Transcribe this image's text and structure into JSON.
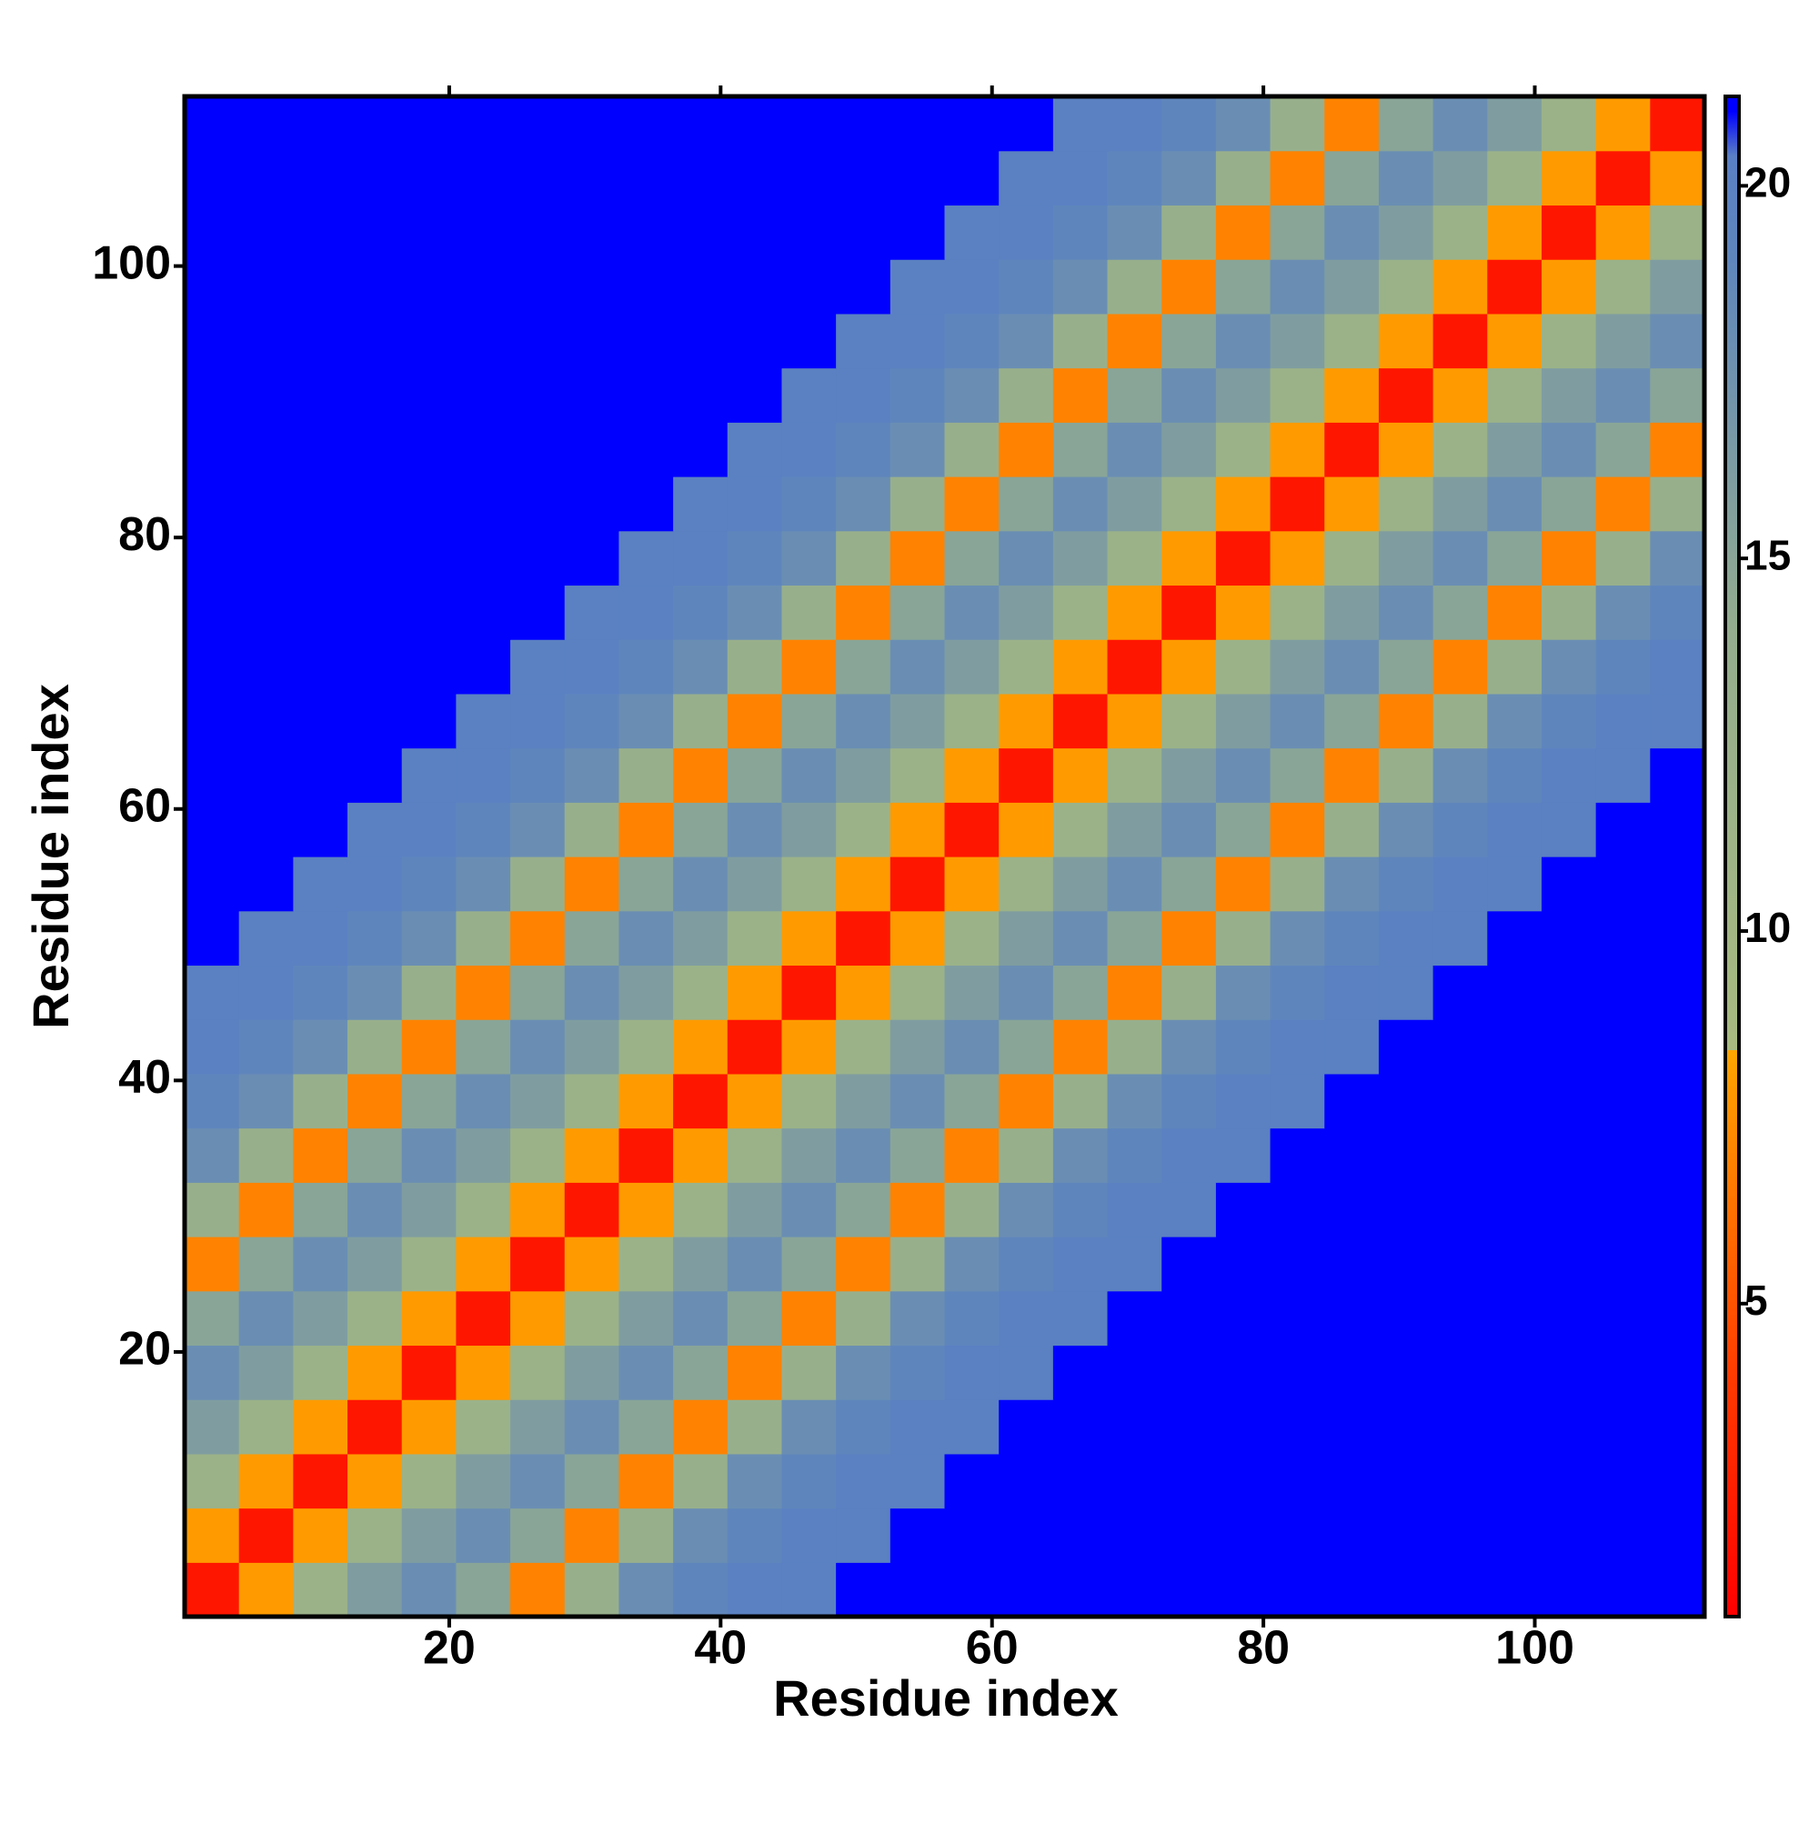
{
  "chart_data": {
    "type": "heatmap",
    "xlabel": "Residue index",
    "ylabel": "Residue index",
    "x": [
      2.5,
      6.5,
      10.5,
      14.5,
      18.5,
      22.5,
      26.5,
      30.5,
      34.5,
      38.5,
      42.5,
      46.5,
      50.5,
      54.5,
      58.5,
      62.5,
      66.5,
      70.5,
      74.5,
      78.5,
      82.5,
      86.5,
      90.5,
      94.5,
      98.5,
      102.5,
      106.5,
      110.5
    ],
    "y": [
      2.5,
      6.5,
      10.5,
      14.5,
      18.5,
      22.5,
      26.5,
      30.5,
      34.5,
      38.5,
      42.5,
      46.5,
      50.5,
      54.5,
      58.5,
      62.5,
      66.5,
      70.5,
      74.5,
      78.5,
      82.5,
      86.5,
      90.5,
      94.5,
      98.5,
      102.5,
      106.5,
      110.5
    ],
    "cell_size": 4,
    "xlim": [
      0.5,
      112.5
    ],
    "ylim": [
      0.5,
      112.5
    ],
    "xticks": [
      20,
      40,
      60,
      80,
      100
    ],
    "yticks": [
      20,
      40,
      60,
      80,
      100
    ],
    "values": [
      [
        2,
        8,
        12,
        16,
        18,
        15,
        7,
        13,
        18,
        19,
        20,
        20,
        21,
        21,
        21,
        21,
        21,
        21,
        21,
        21,
        21,
        21,
        21,
        21,
        21,
        21,
        21,
        21
      ],
      [
        8,
        2,
        8,
        12,
        16,
        18,
        15,
        7,
        13,
        18,
        19,
        20,
        20,
        21,
        21,
        21,
        21,
        21,
        21,
        21,
        21,
        21,
        21,
        21,
        21,
        21,
        21,
        21
      ],
      [
        12,
        8,
        2,
        8,
        12,
        16,
        18,
        15,
        7,
        13,
        18,
        19,
        20,
        20,
        21,
        21,
        21,
        21,
        21,
        21,
        21,
        21,
        21,
        21,
        21,
        21,
        21,
        21
      ],
      [
        16,
        12,
        8,
        2,
        8,
        12,
        16,
        18,
        15,
        7,
        13,
        18,
        19,
        20,
        20,
        21,
        21,
        21,
        21,
        21,
        21,
        21,
        21,
        21,
        21,
        21,
        21,
        21
      ],
      [
        18,
        16,
        12,
        8,
        2,
        8,
        12,
        16,
        18,
        15,
        7,
        13,
        18,
        19,
        20,
        20,
        21,
        21,
        21,
        21,
        21,
        21,
        21,
        21,
        21,
        21,
        21,
        21
      ],
      [
        15,
        18,
        16,
        12,
        8,
        2,
        8,
        12,
        16,
        18,
        15,
        7,
        13,
        18,
        19,
        20,
        20,
        21,
        21,
        21,
        21,
        21,
        21,
        21,
        21,
        21,
        21,
        21
      ],
      [
        7,
        15,
        18,
        16,
        12,
        8,
        2,
        8,
        12,
        16,
        18,
        15,
        7,
        13,
        18,
        19,
        20,
        20,
        21,
        21,
        21,
        21,
        21,
        21,
        21,
        21,
        21,
        21
      ],
      [
        13,
        7,
        15,
        18,
        16,
        12,
        8,
        2,
        8,
        12,
        16,
        18,
        15,
        7,
        13,
        18,
        19,
        20,
        20,
        21,
        21,
        21,
        21,
        21,
        21,
        21,
        21,
        21
      ],
      [
        18,
        13,
        7,
        15,
        18,
        16,
        12,
        8,
        2,
        8,
        12,
        16,
        18,
        15,
        7,
        13,
        18,
        19,
        20,
        20,
        21,
        21,
        21,
        21,
        21,
        21,
        21,
        21
      ],
      [
        19,
        18,
        13,
        7,
        15,
        18,
        16,
        12,
        8,
        2,
        8,
        12,
        16,
        18,
        15,
        7,
        13,
        18,
        19,
        20,
        20,
        21,
        21,
        21,
        21,
        21,
        21,
        21
      ],
      [
        20,
        19,
        18,
        13,
        7,
        15,
        18,
        16,
        12,
        8,
        2,
        8,
        12,
        16,
        18,
        15,
        7,
        13,
        18,
        19,
        20,
        20,
        21,
        21,
        21,
        21,
        21,
        21
      ],
      [
        20,
        20,
        19,
        18,
        13,
        7,
        15,
        18,
        16,
        12,
        8,
        2,
        8,
        12,
        16,
        18,
        15,
        7,
        13,
        18,
        19,
        20,
        20,
        21,
        21,
        21,
        21,
        21
      ],
      [
        21,
        20,
        20,
        19,
        18,
        13,
        7,
        15,
        18,
        16,
        12,
        8,
        2,
        8,
        12,
        16,
        18,
        15,
        7,
        13,
        18,
        19,
        20,
        20,
        21,
        21,
        21,
        21
      ],
      [
        21,
        21,
        20,
        20,
        19,
        18,
        13,
        7,
        15,
        18,
        16,
        12,
        8,
        2,
        8,
        12,
        16,
        18,
        15,
        7,
        13,
        18,
        19,
        20,
        20,
        21,
        21,
        21
      ],
      [
        21,
        21,
        21,
        20,
        20,
        19,
        18,
        13,
        7,
        15,
        18,
        16,
        12,
        8,
        2,
        8,
        12,
        16,
        18,
        15,
        7,
        13,
        18,
        19,
        20,
        20,
        21,
        21
      ],
      [
        21,
        21,
        21,
        21,
        20,
        20,
        19,
        18,
        13,
        7,
        15,
        18,
        16,
        12,
        8,
        2,
        8,
        12,
        16,
        18,
        15,
        7,
        13,
        18,
        19,
        20,
        20,
        21
      ],
      [
        21,
        21,
        21,
        21,
        21,
        20,
        20,
        19,
        18,
        13,
        7,
        15,
        18,
        16,
        12,
        8,
        2,
        8,
        12,
        16,
        18,
        15,
        7,
        13,
        18,
        19,
        20,
        20
      ],
      [
        21,
        21,
        21,
        21,
        21,
        21,
        20,
        20,
        19,
        18,
        13,
        7,
        15,
        18,
        16,
        12,
        8,
        2,
        8,
        12,
        16,
        18,
        15,
        7,
        13,
        18,
        19,
        20
      ],
      [
        21,
        21,
        21,
        21,
        21,
        21,
        21,
        20,
        20,
        19,
        18,
        13,
        7,
        15,
        18,
        16,
        12,
        8,
        2,
        8,
        12,
        16,
        18,
        15,
        7,
        13,
        18,
        19
      ],
      [
        21,
        21,
        21,
        21,
        21,
        21,
        21,
        21,
        20,
        20,
        19,
        18,
        13,
        7,
        15,
        18,
        16,
        12,
        8,
        2,
        8,
        12,
        16,
        18,
        15,
        7,
        13,
        18
      ],
      [
        21,
        21,
        21,
        21,
        21,
        21,
        21,
        21,
        21,
        20,
        20,
        19,
        18,
        13,
        7,
        15,
        18,
        16,
        12,
        8,
        2,
        8,
        12,
        16,
        18,
        15,
        7,
        13
      ],
      [
        21,
        21,
        21,
        21,
        21,
        21,
        21,
        21,
        21,
        21,
        20,
        20,
        19,
        18,
        13,
        7,
        15,
        18,
        16,
        12,
        8,
        2,
        8,
        12,
        16,
        18,
        15,
        7
      ],
      [
        21,
        21,
        21,
        21,
        21,
        21,
        21,
        21,
        21,
        21,
        21,
        20,
        20,
        19,
        18,
        13,
        7,
        15,
        18,
        16,
        12,
        8,
        2,
        8,
        12,
        16,
        18,
        15
      ],
      [
        21,
        21,
        21,
        21,
        21,
        21,
        21,
        21,
        21,
        21,
        21,
        21,
        20,
        20,
        19,
        18,
        13,
        7,
        15,
        18,
        16,
        12,
        8,
        2,
        8,
        12,
        16,
        18
      ],
      [
        21,
        21,
        21,
        21,
        21,
        21,
        21,
        21,
        21,
        21,
        21,
        21,
        21,
        20,
        20,
        19,
        18,
        13,
        7,
        15,
        18,
        16,
        12,
        8,
        2,
        8,
        12,
        16
      ],
      [
        21,
        21,
        21,
        21,
        21,
        21,
        21,
        21,
        21,
        21,
        21,
        21,
        21,
        21,
        20,
        20,
        19,
        18,
        13,
        7,
        15,
        18,
        16,
        12,
        8,
        2,
        8,
        12
      ],
      [
        21,
        21,
        21,
        21,
        21,
        21,
        21,
        21,
        21,
        21,
        21,
        21,
        21,
        21,
        21,
        20,
        20,
        19,
        18,
        13,
        7,
        15,
        18,
        16,
        12,
        8,
        2,
        8
      ],
      [
        21,
        21,
        21,
        21,
        21,
        21,
        21,
        21,
        21,
        21,
        21,
        21,
        21,
        21,
        21,
        21,
        20,
        20,
        19,
        18,
        13,
        7,
        15,
        18,
        16,
        12,
        8,
        2
      ]
    ],
    "colorbar": {
      "zlim": [
        0.8,
        21.2
      ],
      "ticks": [
        5,
        10,
        15,
        20
      ],
      "colorscale": [
        [
          0.8,
          "#ff0000"
        ],
        [
          4,
          "#ff3a00"
        ],
        [
          8.4,
          "#ffa500"
        ],
        [
          8.4,
          "#a8ba80"
        ],
        [
          14,
          "#94ad8e"
        ],
        [
          19,
          "#5f86bc"
        ],
        [
          20.4,
          "#5a7fc4"
        ],
        [
          21,
          "#0000ff"
        ],
        [
          21.2,
          "#0000ff"
        ]
      ]
    }
  }
}
